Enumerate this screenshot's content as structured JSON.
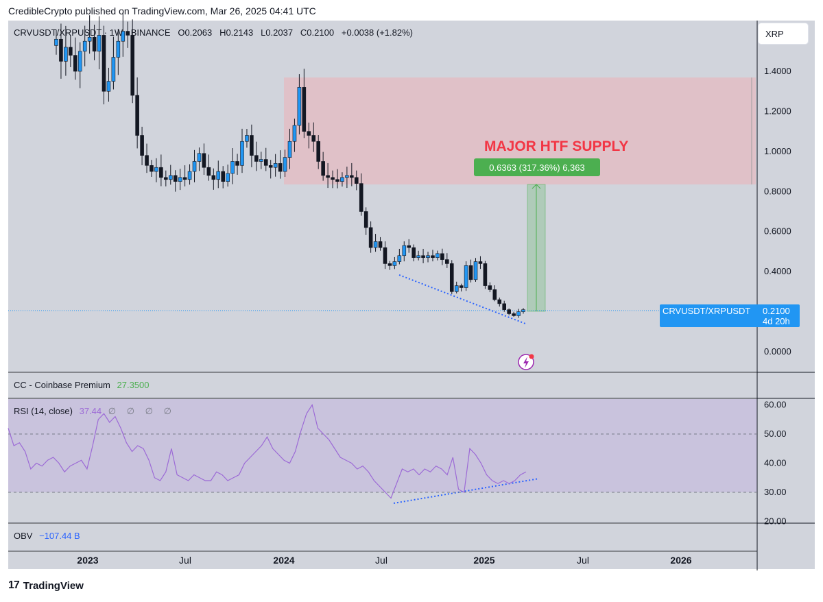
{
  "header": {
    "publisher_line": "CredibleCrypto published on TradingView.com, Mar 26, 2025 04:41 UTC"
  },
  "symbol_search": {
    "value": "XRP"
  },
  "legend": {
    "symbol": "CRVUSDT/XRPUSDT · 1W · BINANCE",
    "open": "O0.2063",
    "high": "H0.2143",
    "low": "L0.2037",
    "close": "C0.2100",
    "change": "+0.0038 (+1.82%)"
  },
  "annotations": {
    "supply_label": "MAJOR HTF SUPPLY",
    "measure_label": "0.6363 (317.36%) 6,363"
  },
  "price_tag": {
    "symbol": "CRVUSDT/XRPUSDT",
    "price": "0.2100",
    "countdown": "4d 20h"
  },
  "panes": {
    "coinbase": {
      "label": "CC - Coinbase Premium",
      "value": "27.3500"
    },
    "rsi": {
      "label": "RSI (14, close)",
      "value": "37.44",
      "na": "∅ ∅ ∅ ∅"
    },
    "obv": {
      "label": "OBV",
      "value": "−107.44 B"
    }
  },
  "footer": {
    "brand": "TradingView"
  },
  "colors": {
    "up": "#2196f3",
    "down": "#131722",
    "supply_zone": "#f2aab0",
    "rsi_line": "#9c6ad6",
    "trend_line": "#2962ff",
    "measure": "#4caf50",
    "label_red": "#f23645"
  },
  "chart_data": [
    {
      "type": "candlestick",
      "title": "CRVUSDT/XRPUSDT · 1W · BINANCE",
      "y_ticks": [
        "1.4000",
        "1.2000",
        "1.0000",
        "0.8000",
        "0.6000",
        "0.4000",
        "0.0000"
      ],
      "ylim": [
        -0.1,
        1.62
      ],
      "x_ticks": [
        "2023",
        "Jul",
        "2024",
        "Jul",
        "2025",
        "Jul",
        "2026"
      ],
      "closes": [
        1.56,
        1.45,
        1.52,
        1.48,
        1.4,
        1.5,
        1.55,
        1.57,
        1.5,
        1.58,
        1.3,
        1.35,
        1.47,
        1.55,
        1.6,
        1.58,
        1.28,
        1.08,
        0.98,
        0.93,
        0.9,
        0.92,
        0.87,
        0.86,
        0.88,
        0.85,
        0.87,
        0.86,
        0.9,
        0.95,
        0.99,
        0.92,
        0.88,
        0.86,
        0.9,
        0.85,
        0.89,
        0.95,
        0.93,
        1.05,
        1.08,
        0.98,
        0.95,
        0.96,
        0.93,
        0.92,
        0.94,
        0.9,
        0.97,
        1.05,
        1.13,
        1.32,
        1.1,
        1.08,
        1.05,
        0.95,
        0.88,
        0.87,
        0.86,
        0.85,
        0.87,
        0.88,
        0.87,
        0.84,
        0.7,
        0.62,
        0.52,
        0.55,
        0.52,
        0.44,
        0.43,
        0.45,
        0.48,
        0.53,
        0.52,
        0.47,
        0.48,
        0.47,
        0.48,
        0.47,
        0.49,
        0.46,
        0.44,
        0.3,
        0.33,
        0.32,
        0.43,
        0.36,
        0.45,
        0.44,
        0.33,
        0.31,
        0.26,
        0.24,
        0.21,
        0.19,
        0.18,
        0.2,
        0.21
      ],
      "measure": {
        "from": 0.21,
        "to": 0.85,
        "change_pct": 317.36
      },
      "supply_zone": [
        0.83,
        1.37
      ]
    },
    {
      "type": "line",
      "title": "RSI (14, close)",
      "y_ticks": [
        "60.00",
        "50.00",
        "40.00",
        "30.00",
        "20.00"
      ],
      "ylim": [
        19,
        61
      ],
      "bands": [
        30,
        50
      ],
      "values": [
        52,
        46,
        47,
        44,
        38,
        40,
        39,
        41,
        42,
        40,
        37,
        39,
        40,
        41,
        38,
        46,
        55,
        57,
        54,
        56,
        52,
        47,
        44,
        46,
        45,
        41,
        35,
        34,
        37,
        45,
        36,
        35,
        34,
        36,
        35,
        34,
        34,
        37,
        36,
        34,
        35,
        36,
        40,
        42,
        44,
        46,
        49,
        45,
        43,
        41,
        40,
        44,
        51,
        57,
        60,
        52,
        50,
        48,
        45,
        42,
        41,
        40,
        38,
        39,
        37,
        34,
        32,
        30,
        28,
        33,
        38,
        37,
        38,
        36,
        38,
        37,
        39,
        38,
        36,
        42,
        31,
        30,
        45,
        43,
        40,
        36,
        34,
        33,
        34,
        33,
        34,
        36,
        37
      ]
    }
  ]
}
